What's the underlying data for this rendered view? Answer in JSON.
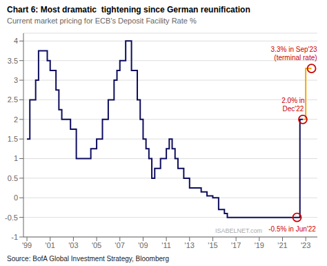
{
  "chart_data": {
    "type": "line",
    "title": "Chart 6: Most dramatic  tightening since German reunification",
    "subtitle": "Current market pricing for ECB's Deposit Facility Rate %",
    "source": "Source: BofA Global Investment Strategy, Bloomberg",
    "watermark": "ISABELNET.com",
    "xlim": [
      1998.7,
      2024.0
    ],
    "xticks": [
      {
        "value": 1999,
        "label": "'99"
      },
      {
        "value": 2001,
        "label": "'01"
      },
      {
        "value": 2003,
        "label": "'03"
      },
      {
        "value": 2005,
        "label": "'05"
      },
      {
        "value": 2007,
        "label": "'07"
      },
      {
        "value": 2009,
        "label": "'09"
      },
      {
        "value": 2011,
        "label": "'11"
      },
      {
        "value": 2013,
        "label": "'13"
      },
      {
        "value": 2015,
        "label": "'15"
      },
      {
        "value": 2017,
        "label": "'17"
      },
      {
        "value": 2019,
        "label": "'19"
      },
      {
        "value": 2021,
        "label": "'21"
      },
      {
        "value": 2023,
        "label": "'23"
      }
    ],
    "ylim": [
      -1.0,
      4.2
    ],
    "yticks": [
      -1,
      -0.5,
      0,
      0.5,
      1,
      1.5,
      2,
      2.5,
      3,
      3.5,
      4
    ],
    "grid": true,
    "series": [
      {
        "color": "#0d0d5e",
        "x": [
          1999.0,
          1999.25,
          1999.25,
          1999.75,
          1999.75,
          2000.0,
          2000.0,
          2000.75,
          2000.75,
          2001.0,
          2001.0,
          2001.5,
          2001.5,
          2001.75,
          2001.75,
          2002.0,
          2002.0,
          2002.75,
          2002.75,
          2003.25,
          2003.25,
          2003.5,
          2003.5,
          2004.5,
          2004.5,
          2005.0,
          2005.0,
          2005.5,
          2005.5,
          2006.0,
          2006.0,
          2006.5,
          2006.5,
          2006.75,
          2006.75,
          2007.0,
          2007.0,
          2007.5,
          2007.5,
          2008.0,
          2008.0,
          2008.5,
          2008.5,
          2008.75,
          2008.75,
          2009.0,
          2009.0,
          2009.25,
          2009.25,
          2009.5,
          2009.5,
          2009.75,
          2009.75,
          2010.0,
          2010.0,
          2010.5,
          2010.5,
          2011.0,
          2011.0,
          2011.25,
          2011.25,
          2011.5,
          2011.5,
          2011.75,
          2011.75,
          2012.0,
          2012.0,
          2012.5,
          2012.5,
          2013.0,
          2013.0,
          2014.0,
          2014.0,
          2014.5,
          2014.5,
          2015.0,
          2015.0,
          2015.5,
          2015.5,
          2016.0,
          2016.0,
          2016.25,
          2016.25,
          2019.5,
          2022.0,
          2022.0,
          2022.5,
          2022.5,
          2022.75
        ],
        "values": [
          1.5,
          1.5,
          2.5,
          2.5,
          3.0,
          3.0,
          3.75,
          3.75,
          3.5,
          3.5,
          3.25,
          3.25,
          2.75,
          2.75,
          2.25,
          2.25,
          2.0,
          2.0,
          1.75,
          1.75,
          1.0,
          1.0,
          1.0,
          1.0,
          1.25,
          1.25,
          1.5,
          1.5,
          2.0,
          2.0,
          2.5,
          2.5,
          3.0,
          3.0,
          3.25,
          3.25,
          3.5,
          3.5,
          4.0,
          4.0,
          3.25,
          3.25,
          2.5,
          2.5,
          2.0,
          2.0,
          1.5,
          1.5,
          1.25,
          1.25,
          1.0,
          1.0,
          0.5,
          0.5,
          0.75,
          0.75,
          1.0,
          1.0,
          1.25,
          1.25,
          1.5,
          1.5,
          1.25,
          1.25,
          1.0,
          1.0,
          0.75,
          0.75,
          0.5,
          0.5,
          0.25,
          0.25,
          0.15,
          0.15,
          0.05,
          0.05,
          0.0,
          0.0,
          -0.3,
          -0.3,
          -0.4,
          -0.4,
          -0.5,
          -0.5,
          -0.5,
          -0.5,
          -0.5,
          2.0,
          2.0
        ]
      },
      {
        "color": "#f5a800",
        "x": [
          2022.75,
          2023.0,
          2023.0,
          2023.5
        ],
        "values": [
          2.0,
          2.0,
          3.3,
          3.3
        ]
      }
    ],
    "annotations": [
      {
        "text": "-0.5% in Jun'22",
        "x": 2022.25,
        "y": -0.5,
        "color": "#cc0000"
      },
      {
        "text": "2.0% in\nDec'22",
        "x": 2022.75,
        "y": 2.0,
        "color": "#cc0000"
      },
      {
        "text": "3.3% in Sep'23\n(terminal rate)",
        "x": 2023.5,
        "y": 3.3,
        "color": "#cc0000"
      }
    ]
  }
}
